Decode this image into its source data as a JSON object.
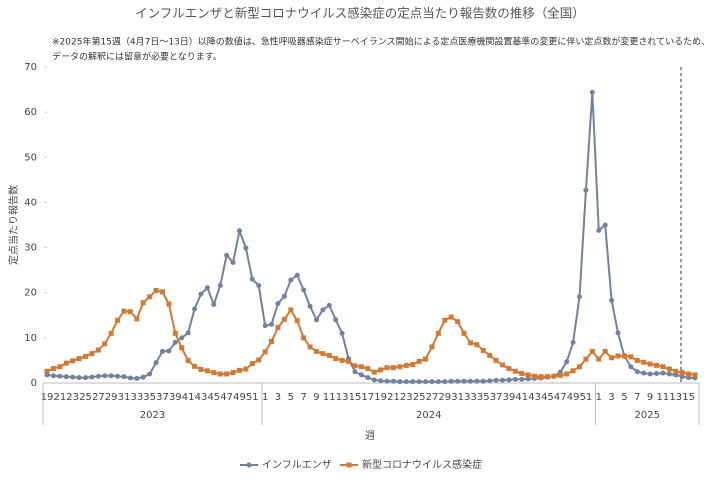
{
  "chart_data": {
    "type": "line",
    "title": "インフルエンザと新型コロナウイルス感染症の定点当たり報告数の推移（全国）",
    "notes": [
      "※2025年第15週（4月7日～13日）以降の数値は、急性呼吸器感染症サーベイランス開始による定点医療機関設置基準の変更に伴い定点数が変更されているため、",
      "データの解釈には留意が必要となります。"
    ],
    "y_label": "定点当たり報告数",
    "x_label": "週",
    "x_groups": [
      "2023",
      "2024",
      "2025"
    ],
    "categories": [
      "19",
      null,
      "21",
      null,
      "23",
      null,
      "25",
      null,
      "27",
      null,
      "29",
      null,
      "31",
      null,
      "33",
      null,
      "35",
      null,
      "37",
      null,
      "39",
      null,
      "41",
      null,
      "43",
      null,
      "45",
      null,
      "47",
      null,
      "49",
      null,
      "51",
      null,
      "1",
      null,
      "3",
      null,
      "5",
      null,
      "7",
      null,
      "9",
      null,
      "11",
      null,
      "13",
      null,
      "15",
      null,
      "17",
      null,
      "19",
      null,
      "21",
      null,
      "23",
      null,
      "25",
      null,
      "27",
      null,
      "29",
      null,
      "31",
      null,
      "33",
      null,
      "35",
      null,
      "37",
      null,
      "39",
      null,
      "41",
      null,
      "43",
      null,
      "45",
      null,
      "47",
      null,
      "49",
      null,
      "51",
      null,
      "1",
      null,
      "3",
      null,
      "5",
      null,
      "7",
      null,
      "9",
      null,
      "11",
      null,
      "13",
      null,
      "15",
      null
    ],
    "series": [
      {
        "name": "インフルエンザ",
        "color": "#72829c",
        "marker": "circle",
        "values": [
          1.8,
          1.6,
          1.5,
          1.4,
          1.3,
          1.2,
          1.2,
          1.3,
          1.5,
          1.6,
          1.6,
          1.5,
          1.4,
          1.1,
          1.0,
          1.3,
          2.0,
          4.5,
          7.0,
          7.1,
          9.0,
          10.0,
          11.1,
          16.4,
          19.7,
          21.1,
          17.4,
          21.6,
          28.3,
          26.7,
          33.7,
          29.9,
          23.0,
          21.6,
          12.7,
          13.0,
          17.6,
          19.2,
          22.8,
          23.9,
          20.6,
          17.0,
          14.0,
          16.2,
          17.2,
          14.0,
          11.0,
          5.4,
          2.5,
          1.8,
          1.2,
          0.7,
          0.5,
          0.4,
          0.4,
          0.3,
          0.3,
          0.3,
          0.3,
          0.3,
          0.3,
          0.3,
          0.3,
          0.4,
          0.4,
          0.4,
          0.4,
          0.4,
          0.4,
          0.5,
          0.6,
          0.6,
          0.7,
          0.8,
          0.8,
          0.9,
          1.0,
          1.1,
          1.3,
          1.5,
          2.4,
          4.7,
          9.0,
          19.1,
          42.7,
          64.4,
          33.8,
          35.0,
          18.3,
          11.1,
          5.9,
          3.6,
          2.5,
          2.2,
          2.0,
          2.1,
          2.2,
          2.0,
          1.8,
          1.4,
          1.2,
          1.1
        ]
      },
      {
        "name": "新型コロナウイルス感染症",
        "color": "#d27a35",
        "marker": "square",
        "values": [
          2.6,
          3.2,
          3.6,
          4.4,
          4.9,
          5.4,
          5.9,
          6.5,
          7.3,
          8.7,
          11.0,
          13.9,
          15.9,
          15.8,
          14.2,
          17.8,
          19.1,
          20.5,
          20.2,
          17.5,
          11.0,
          7.8,
          5.0,
          3.7,
          3.0,
          2.7,
          2.3,
          2.0,
          2.0,
          2.3,
          2.8,
          3.1,
          4.3,
          5.1,
          6.9,
          9.2,
          12.3,
          14.1,
          16.2,
          13.8,
          10.0,
          8.0,
          7.0,
          6.5,
          6.1,
          5.4,
          5.0,
          4.8,
          3.8,
          3.6,
          3.2,
          2.4,
          2.9,
          3.4,
          3.4,
          3.6,
          3.9,
          4.1,
          4.8,
          5.3,
          8.0,
          11.0,
          13.9,
          14.6,
          13.6,
          11.0,
          8.9,
          8.5,
          7.2,
          6.1,
          5.0,
          4.0,
          3.2,
          2.6,
          2.1,
          1.8,
          1.5,
          1.4,
          1.4,
          1.5,
          1.7,
          2.0,
          2.7,
          3.6,
          5.3,
          7.0,
          5.3,
          7.0,
          5.6,
          6.0,
          6.0,
          5.8,
          5.0,
          4.6,
          4.2,
          3.9,
          3.6,
          3.1,
          2.6,
          2.3,
          2.0,
          1.8
        ]
      }
    ],
    "ylim": [
      0,
      70
    ],
    "yticks": [
      0,
      10,
      20,
      30,
      40,
      50,
      60,
      70
    ],
    "grid": false
  }
}
